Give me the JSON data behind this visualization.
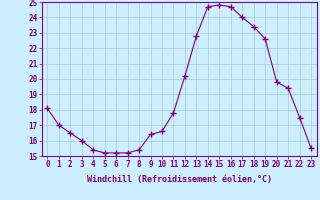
{
  "x": [
    0,
    1,
    2,
    3,
    4,
    5,
    6,
    7,
    8,
    9,
    10,
    11,
    12,
    13,
    14,
    15,
    16,
    17,
    18,
    19,
    20,
    21,
    22,
    23
  ],
  "y": [
    18.1,
    17.0,
    16.5,
    16.0,
    15.4,
    15.2,
    15.2,
    15.2,
    15.4,
    16.4,
    16.6,
    17.8,
    20.2,
    22.8,
    24.7,
    24.8,
    24.7,
    24.0,
    23.4,
    22.6,
    19.8,
    19.4,
    17.5,
    15.5
  ],
  "xlim": [
    -0.5,
    23.5
  ],
  "ylim": [
    15,
    25
  ],
  "yticks": [
    15,
    16,
    17,
    18,
    19,
    20,
    21,
    22,
    23,
    24,
    25
  ],
  "xticks": [
    0,
    1,
    2,
    3,
    4,
    5,
    6,
    7,
    8,
    9,
    10,
    11,
    12,
    13,
    14,
    15,
    16,
    17,
    18,
    19,
    20,
    21,
    22,
    23
  ],
  "xlabel": "Windchill (Refroidissement éolien,°C)",
  "line_color": "#7b007b",
  "marker": "+",
  "marker_size": 4,
  "bg_color": "#cceeff",
  "grid_color": "#aacccc",
  "axis_label_color": "#7b007b",
  "tick_color": "#7b007b",
  "spine_color": "#7b007b",
  "tick_fontsize": 5.5,
  "xlabel_fontsize": 6.0
}
